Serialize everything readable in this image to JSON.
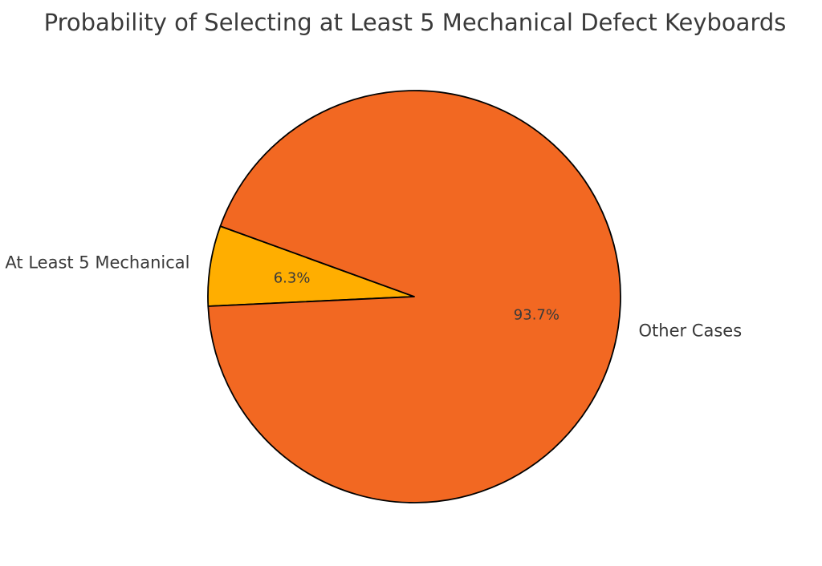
{
  "chart_data": {
    "type": "pie",
    "title": "Probability of Selecting at Least 5 Mechanical Defect Keyboards",
    "slices": [
      {
        "label": "At Least 5 Mechanical",
        "value": 6.3,
        "pct_label": "6.3%",
        "color": "#ffae00"
      },
      {
        "label": "Other Cases",
        "value": 93.7,
        "pct_label": "93.7%",
        "color": "#f26822"
      }
    ],
    "start_angle_deg": 160,
    "direction": "counterclockwise",
    "edge_color": "#000000"
  }
}
